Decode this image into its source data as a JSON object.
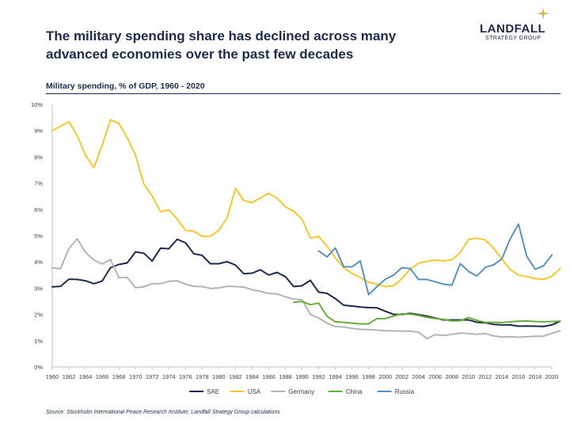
{
  "header": {
    "headline": "The military spending share has declined across many advanced economies over the past few decades",
    "logo_name": "LANDFALL",
    "logo_sub": "STRATEGY GROUP",
    "logo_icon": "star-icon",
    "logo_color": "#d4b24a"
  },
  "source": "Source: Stockholm International Peace Research Institute; Landfall Strategy Group calculations",
  "chart_data": {
    "type": "line",
    "title": "Military spending, % of GDP, 1960 - 2020",
    "xlabel": "",
    "ylabel": "",
    "ylim": [
      0,
      10
    ],
    "y_ticks": [
      "0%",
      "1%",
      "2%",
      "3%",
      "4%",
      "5%",
      "6%",
      "7%",
      "8%",
      "9%",
      "10%"
    ],
    "x_ticks": [
      "1960",
      "1962",
      "1964",
      "1966",
      "1968",
      "1970",
      "1972",
      "1974",
      "1976",
      "1978",
      "1980",
      "1982",
      "1984",
      "1986",
      "1988",
      "1990",
      "1992",
      "1994",
      "1996",
      "1998",
      "2000",
      "2002",
      "2004",
      "2006",
      "2008",
      "2010",
      "2012",
      "2014",
      "2016",
      "2018",
      "2020"
    ],
    "grid": false,
    "legend_position": "bottom",
    "series": [
      {
        "name": "SAE",
        "color": "#1c2b4a",
        "start_year": 1960,
        "values": [
          3.05,
          3.07,
          3.34,
          3.33,
          3.28,
          3.17,
          3.27,
          3.78,
          3.9,
          3.96,
          4.38,
          4.33,
          4.03,
          4.52,
          4.5,
          4.86,
          4.73,
          4.31,
          4.25,
          3.93,
          3.93,
          4.01,
          3.88,
          3.55,
          3.57,
          3.7,
          3.5,
          3.6,
          3.44,
          3.06,
          3.09,
          3.3,
          2.85,
          2.8,
          2.6,
          2.35,
          2.32,
          2.28,
          2.26,
          2.25,
          2.12,
          2.0,
          2.0,
          2.04,
          1.99,
          1.93,
          1.86,
          1.79,
          1.79,
          1.79,
          1.79,
          1.7,
          1.68,
          1.62,
          1.6,
          1.6,
          1.55,
          1.56,
          1.55,
          1.54,
          1.6,
          1.74
        ]
      },
      {
        "name": "USA",
        "color": "#f2c830",
        "start_year": 1960,
        "values": [
          9.0,
          9.17,
          9.34,
          8.81,
          8.05,
          7.59,
          8.45,
          9.41,
          9.28,
          8.73,
          8.07,
          6.96,
          6.51,
          5.91,
          5.98,
          5.64,
          5.2,
          5.17,
          4.97,
          4.98,
          5.2,
          5.68,
          6.8,
          6.34,
          6.26,
          6.44,
          6.61,
          6.43,
          6.1,
          5.93,
          5.63,
          4.9,
          4.97,
          4.6,
          4.14,
          3.78,
          3.56,
          3.4,
          3.23,
          3.15,
          3.06,
          3.09,
          3.36,
          3.73,
          3.95,
          4.02,
          4.07,
          4.04,
          4.08,
          4.35,
          4.86,
          4.9,
          4.84,
          4.52,
          4.11,
          3.71,
          3.5,
          3.44,
          3.36,
          3.33,
          3.45,
          3.74
        ]
      },
      {
        "name": "Germany",
        "color": "#b4b4b4",
        "start_year": 1960,
        "values": [
          3.77,
          3.74,
          4.5,
          4.88,
          4.36,
          4.07,
          3.92,
          4.09,
          3.4,
          3.41,
          3.02,
          3.05,
          3.17,
          3.17,
          3.26,
          3.28,
          3.15,
          3.07,
          3.06,
          2.99,
          3.01,
          3.07,
          3.06,
          3.04,
          2.94,
          2.88,
          2.8,
          2.78,
          2.67,
          2.58,
          2.56,
          2.0,
          1.86,
          1.67,
          1.54,
          1.52,
          1.47,
          1.43,
          1.42,
          1.4,
          1.38,
          1.37,
          1.36,
          1.36,
          1.32,
          1.08,
          1.23,
          1.2,
          1.24,
          1.29,
          1.27,
          1.24,
          1.27,
          1.18,
          1.14,
          1.15,
          1.13,
          1.15,
          1.17,
          1.17,
          1.28,
          1.37
        ]
      },
      {
        "name": "China",
        "color": "#6aaa3e",
        "start_year": 1989,
        "values": [
          2.46,
          2.49,
          2.37,
          2.43,
          1.93,
          1.72,
          1.7,
          1.67,
          1.64,
          1.64,
          1.84,
          1.84,
          1.94,
          2.02,
          2.01,
          1.96,
          1.89,
          1.84,
          1.81,
          1.75,
          1.76,
          1.88,
          1.77,
          1.7,
          1.7,
          1.69,
          1.72,
          1.74,
          1.75,
          1.73,
          1.72,
          1.73,
          1.74
        ]
      },
      {
        "name": "Russia",
        "color": "#5b91bc",
        "start_year": 1992,
        "values": [
          4.42,
          4.19,
          4.53,
          3.82,
          3.81,
          4.04,
          2.75,
          3.06,
          3.34,
          3.5,
          3.78,
          3.74,
          3.33,
          3.33,
          3.24,
          3.15,
          3.11,
          3.93,
          3.64,
          3.46,
          3.79,
          3.89,
          4.11,
          4.87,
          5.44,
          4.21,
          3.72,
          3.85,
          4.26
        ]
      }
    ]
  }
}
